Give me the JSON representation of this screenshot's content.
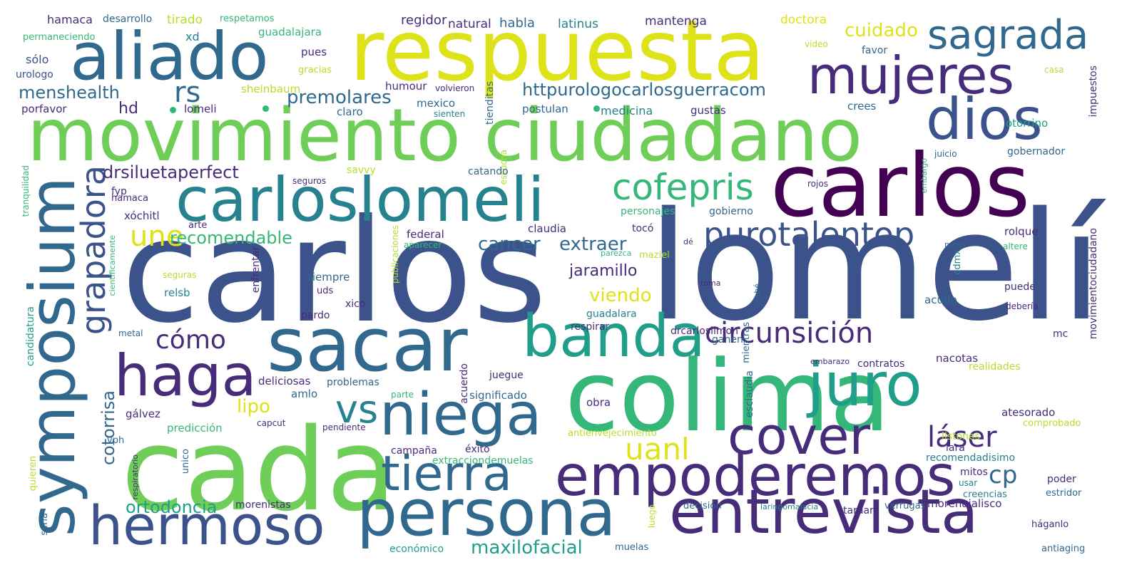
{
  "palette": {
    "purple": "#440154",
    "indigo": "#472c7a",
    "blue": "#3b528b",
    "slate": "#31688e",
    "teal": "#26828e",
    "sea": "#1f9e89",
    "green": "#35b779",
    "lime": "#6ece58",
    "yellowgreen": "#b5de2b",
    "yellow": "#dde318"
  },
  "words": [
    {
      "text": "respuesta",
      "color": "yellow"
    },
    {
      "text": "carlos",
      "color": "blue"
    },
    {
      "text": "lomelí",
      "color": "blue"
    },
    {
      "text": "carlos",
      "color": "purple"
    },
    {
      "text": "movimiento ciudadano",
      "color": "lime"
    },
    {
      "text": "cada",
      "color": "lime"
    },
    {
      "text": "colima",
      "color": "green"
    },
    {
      "text": "sacar",
      "color": "slate"
    },
    {
      "text": "aliado",
      "color": "slate"
    },
    {
      "text": "mujeres",
      "color": "indigo"
    },
    {
      "text": "dios",
      "color": "blue"
    },
    {
      "text": "sagrada",
      "color": "slate"
    },
    {
      "text": "carloslomeli",
      "color": "teal"
    },
    {
      "text": "symposium",
      "color": "slate"
    },
    {
      "text": "haga",
      "color": "indigo"
    },
    {
      "text": "banda",
      "color": "sea"
    },
    {
      "text": "juro",
      "color": "sea"
    },
    {
      "text": "niega",
      "color": "slate"
    },
    {
      "text": "cover",
      "color": "indigo"
    },
    {
      "text": "empoderemos",
      "color": "indigo"
    },
    {
      "text": "tierra",
      "color": "slate"
    },
    {
      "text": "hermoso",
      "color": "blue"
    },
    {
      "text": "persona",
      "color": "slate"
    },
    {
      "text": "entrevista",
      "color": "indigo"
    },
    {
      "text": "cofepris",
      "color": "green"
    },
    {
      "text": "purotalentop",
      "color": "blue"
    },
    {
      "text": "grapadora",
      "color": "blue"
    },
    {
      "text": "circunsición",
      "color": "indigo"
    },
    {
      "text": "vs",
      "color": "teal"
    },
    {
      "text": "uanl",
      "color": "yellow"
    },
    {
      "text": "láser",
      "color": "indigo"
    },
    {
      "text": "cp",
      "color": "slate"
    },
    {
      "text": "rs",
      "color": "slate"
    },
    {
      "text": "une",
      "color": "yellow"
    },
    {
      "text": "cómo",
      "color": "indigo"
    },
    {
      "text": "recomendable",
      "color": "green"
    },
    {
      "text": "cuidado",
      "color": "yellow"
    },
    {
      "text": "httpurologocarlosguerracom",
      "color": "slate"
    },
    {
      "text": "premolares",
      "color": "slate"
    },
    {
      "text": "drsiluetaperfect",
      "color": "indigo"
    },
    {
      "text": "menshealth",
      "color": "slate"
    },
    {
      "text": "hd",
      "color": "indigo"
    },
    {
      "text": "cancer",
      "color": "slate"
    },
    {
      "text": "extraer",
      "color": "slate"
    },
    {
      "text": "jaramillo",
      "color": "indigo"
    },
    {
      "text": "viendo",
      "color": "yellow"
    },
    {
      "text": "cotorrisa",
      "color": "slate"
    },
    {
      "text": "lipo",
      "color": "yellow"
    },
    {
      "text": "ortodoncia",
      "color": "sea"
    },
    {
      "text": "maxilofacial",
      "color": "sea"
    },
    {
      "text": "regidor",
      "color": "indigo"
    },
    {
      "text": "natural",
      "color": "indigo"
    },
    {
      "text": "habla",
      "color": "slate"
    },
    {
      "text": "latinus",
      "color": "teal"
    },
    {
      "text": "mantenga",
      "color": "indigo"
    },
    {
      "text": "doctora",
      "color": "yellow"
    },
    {
      "text": "hamaca",
      "color": "indigo"
    },
    {
      "text": "desarrollo",
      "color": "slate"
    },
    {
      "text": "tirado",
      "color": "yellowgreen"
    },
    {
      "text": "respetamos",
      "color": "green"
    },
    {
      "text": "xd",
      "color": "teal"
    },
    {
      "text": "guadalajara",
      "color": "green"
    },
    {
      "text": "permaneciendo",
      "color": "green"
    },
    {
      "text": "sólo",
      "color": "blue"
    },
    {
      "text": "urologo",
      "color": "blue"
    },
    {
      "text": "porfavor",
      "color": "indigo"
    },
    {
      "text": "lomeli",
      "color": "indigo"
    },
    {
      "text": "sheinbaum",
      "color": "yellowgreen"
    },
    {
      "text": "gracias",
      "color": "yellowgreen"
    },
    {
      "text": "pues",
      "color": "indigo"
    },
    {
      "text": "humour",
      "color": "indigo"
    },
    {
      "text": "volvieron",
      "color": "indigo"
    },
    {
      "text": "mexico",
      "color": "slate"
    },
    {
      "text": "claro",
      "color": "slate"
    },
    {
      "text": "sienten",
      "color": "teal"
    },
    {
      "text": "tienditas",
      "color": "slate"
    },
    {
      "text": "postulan",
      "color": "slate"
    },
    {
      "text": "medicina",
      "color": "teal"
    },
    {
      "text": "gustas",
      "color": "indigo"
    },
    {
      "text": "crees",
      "color": "slate"
    },
    {
      "text": "otorrino",
      "color": "sea"
    },
    {
      "text": "video",
      "color": "yellowgreen"
    },
    {
      "text": "favor",
      "color": "slate"
    },
    {
      "text": "casa",
      "color": "yellowgreen"
    },
    {
      "text": "impuestos",
      "color": "indigo"
    },
    {
      "text": "escucha",
      "color": "yellowgreen"
    },
    {
      "text": "juicio",
      "color": "slate"
    },
    {
      "text": "gobernador",
      "color": "slate"
    },
    {
      "text": "tranquilidad",
      "color": "green"
    },
    {
      "text": "seguros",
      "color": "indigo"
    },
    {
      "text": "savvy",
      "color": "yellowgreen"
    },
    {
      "text": "fyp",
      "color": "indigo"
    },
    {
      "text": "catando",
      "color": "slate"
    },
    {
      "text": "embargo",
      "color": "green"
    },
    {
      "text": "rojos",
      "color": "indigo"
    },
    {
      "text": "hamaca",
      "color": "indigo"
    },
    {
      "text": "xóchitl",
      "color": "indigo"
    },
    {
      "text": "personajes",
      "color": "green"
    },
    {
      "text": "gobierno",
      "color": "slate"
    },
    {
      "text": "arte",
      "color": "indigo"
    },
    {
      "text": "claudia",
      "color": "indigo"
    },
    {
      "text": "tocó",
      "color": "indigo"
    },
    {
      "text": "rolque",
      "color": "indigo"
    },
    {
      "text": "federal",
      "color": "indigo"
    },
    {
      "text": "aparecer",
      "color": "green"
    },
    {
      "text": "parezca",
      "color": "green"
    },
    {
      "text": "dé",
      "color": "indigo"
    },
    {
      "text": "mejor",
      "color": "slate"
    },
    {
      "text": "altere",
      "color": "green"
    },
    {
      "text": "movimientociudadano",
      "color": "indigo"
    },
    {
      "text": "cientificamente",
      "color": "green"
    },
    {
      "text": "enfrentar",
      "color": "indigo"
    },
    {
      "text": "publicaciones",
      "color": "yellowgreen"
    },
    {
      "text": "maziel",
      "color": "yellowgreen"
    },
    {
      "text": "cdmx",
      "color": "teal"
    },
    {
      "text": "seguras",
      "color": "yellowgreen"
    },
    {
      "text": "siempre",
      "color": "slate"
    },
    {
      "text": "uds",
      "color": "indigo"
    },
    {
      "text": "toma",
      "color": "indigo"
    },
    {
      "text": "puede",
      "color": "indigo"
    },
    {
      "text": "relsb",
      "color": "teal"
    },
    {
      "text": "xico",
      "color": "indigo"
    },
    {
      "text": "bebé",
      "color": "slate"
    },
    {
      "text": "acude",
      "color": "slate"
    },
    {
      "text": "debería",
      "color": "indigo"
    },
    {
      "text": "pardo",
      "color": "indigo"
    },
    {
      "text": "guadalara",
      "color": "teal"
    },
    {
      "text": "candidatura",
      "color": "sea"
    },
    {
      "text": "metal",
      "color": "slate"
    },
    {
      "text": "respirar",
      "color": "indigo"
    },
    {
      "text": "drcarloslimon",
      "color": "indigo"
    },
    {
      "text": "mientras",
      "color": "slate"
    },
    {
      "text": "mc",
      "color": "indigo"
    },
    {
      "text": "ganen",
      "color": "slate"
    },
    {
      "text": "deliciosas",
      "color": "indigo"
    },
    {
      "text": "acuerdo",
      "color": "indigo"
    },
    {
      "text": "nacotas",
      "color": "indigo"
    },
    {
      "text": "embarazo",
      "color": "indigo"
    },
    {
      "text": "contratos",
      "color": "indigo"
    },
    {
      "text": "realidades",
      "color": "yellowgreen"
    },
    {
      "text": "amlo",
      "color": "slate"
    },
    {
      "text": "problemas",
      "color": "slate"
    },
    {
      "text": "juegue",
      "color": "indigo"
    },
    {
      "text": "parte",
      "color": "green"
    },
    {
      "text": "esclaudia",
      "color": "slate"
    },
    {
      "text": "significado",
      "color": "slate"
    },
    {
      "text": "gálvez",
      "color": "indigo"
    },
    {
      "text": "obra",
      "color": "indigo"
    },
    {
      "text": "atesorado",
      "color": "indigo"
    },
    {
      "text": "capcut",
      "color": "indigo"
    },
    {
      "text": "predicción",
      "color": "green"
    },
    {
      "text": "comprobado",
      "color": "yellowgreen"
    },
    {
      "text": "pendiente",
      "color": "indigo"
    },
    {
      "text": "antienvejecimiento",
      "color": "yellowgreen"
    },
    {
      "text": "vph",
      "color": "slate"
    },
    {
      "text": "listones",
      "color": "yellowgreen"
    },
    {
      "text": "campaña",
      "color": "indigo"
    },
    {
      "text": "éxito",
      "color": "indigo"
    },
    {
      "text": "lara",
      "color": "indigo"
    },
    {
      "text": "unico",
      "color": "slate"
    },
    {
      "text": "extracciondemuelas",
      "color": "green"
    },
    {
      "text": "recomendadisimo",
      "color": "teal"
    },
    {
      "text": "quieren",
      "color": "yellowgreen"
    },
    {
      "text": "respiratorio",
      "color": "indigo"
    },
    {
      "text": "mitos",
      "color": "indigo"
    },
    {
      "text": "poder",
      "color": "indigo"
    },
    {
      "text": "usar",
      "color": "teal"
    },
    {
      "text": "creencias",
      "color": "teal"
    },
    {
      "text": "estridor",
      "color": "slate"
    },
    {
      "text": "morenistas",
      "color": "indigo"
    },
    {
      "text": "morenajalisco",
      "color": "indigo"
    },
    {
      "text": "decisión",
      "color": "slate"
    },
    {
      "text": "laringomalacia",
      "color": "teal"
    },
    {
      "text": "tardar",
      "color": "indigo"
    },
    {
      "text": "verrugas",
      "color": "slate"
    },
    {
      "text": "luego",
      "color": "yellowgreen"
    },
    {
      "text": "seria",
      "color": "slate"
    },
    {
      "text": "háganlo",
      "color": "indigo"
    },
    {
      "text": "económico",
      "color": "sea"
    },
    {
      "text": "muelas",
      "color": "slate"
    },
    {
      "text": "antiaging",
      "color": "slate"
    }
  ]
}
